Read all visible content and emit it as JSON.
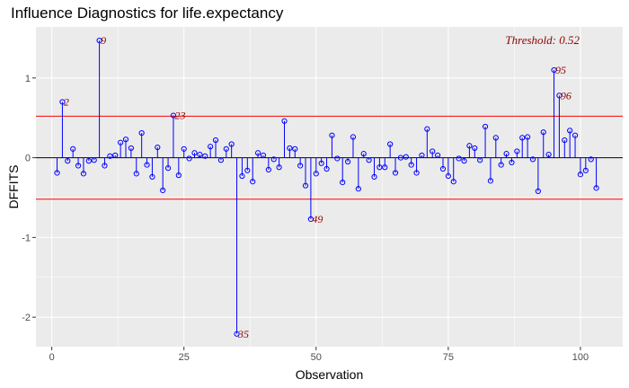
{
  "chart_data": {
    "type": "scatter",
    "title": "Influence Diagnostics for life.expectancy",
    "xlabel": "Observation",
    "ylabel": "DFFITS",
    "xlim": [
      -3,
      108
    ],
    "ylim": [
      -2.37,
      1.64
    ],
    "x_ticks": [
      0,
      25,
      50,
      75,
      100
    ],
    "y_ticks": [
      1,
      0,
      -1,
      -2
    ],
    "grid": true,
    "threshold": 0.52,
    "threshold_text": "Threshold: 0.52",
    "colors": {
      "points": "#0000ff",
      "threshold_lines": "#ff0000",
      "labels": "#8b0000",
      "panel": "#ebebeb",
      "grid": "#ffffff"
    },
    "series": [
      {
        "x": [
          1,
          2,
          3,
          4,
          5,
          6,
          7,
          8,
          9,
          10,
          11,
          12,
          13,
          14,
          15,
          16,
          17,
          18,
          19,
          20,
          21,
          22,
          23,
          24,
          25,
          26,
          27,
          28,
          29,
          30,
          31,
          32,
          33,
          34,
          35,
          36,
          37,
          38,
          39,
          40,
          41,
          42,
          43,
          44,
          45,
          46,
          47,
          48,
          49,
          50,
          51,
          52,
          53,
          54,
          55,
          56,
          57,
          58,
          59,
          60,
          61,
          62,
          63,
          64,
          65,
          66,
          67,
          68,
          69,
          70,
          71,
          72,
          73,
          74,
          75,
          76,
          77,
          78,
          79,
          80,
          81,
          82,
          83,
          84,
          85,
          86,
          87,
          88,
          89,
          90,
          91,
          92,
          93,
          94,
          95,
          96,
          97,
          98,
          99,
          100,
          101,
          102,
          103
        ],
        "y": [
          -0.19,
          0.7,
          -0.04,
          0.11,
          -0.1,
          -0.2,
          -0.04,
          -0.03,
          1.47,
          -0.1,
          0.02,
          0.03,
          0.19,
          0.23,
          0.12,
          -0.2,
          0.31,
          -0.09,
          -0.24,
          0.13,
          -0.41,
          -0.13,
          0.53,
          -0.22,
          0.11,
          -0.01,
          0.06,
          0.04,
          0.02,
          0.14,
          0.22,
          -0.03,
          0.11,
          0.17,
          -2.21,
          -0.23,
          -0.16,
          -0.3,
          0.06,
          0.03,
          -0.15,
          -0.02,
          -0.12,
          0.46,
          0.12,
          0.11,
          -0.1,
          -0.35,
          -0.77,
          -0.2,
          -0.07,
          -0.14,
          0.28,
          -0.01,
          -0.31,
          -0.05,
          0.26,
          -0.39,
          0.05,
          -0.03,
          -0.24,
          -0.12,
          -0.12,
          0.17,
          -0.19,
          0.0,
          0.01,
          -0.09,
          -0.19,
          0.03,
          0.36,
          0.08,
          0.03,
          -0.14,
          -0.23,
          -0.3,
          -0.01,
          -0.04,
          0.15,
          0.12,
          -0.03,
          0.39,
          -0.29,
          0.25,
          -0.09,
          0.05,
          -0.06,
          0.08,
          0.25,
          0.26,
          -0.02,
          -0.42,
          0.32,
          0.04,
          1.1,
          0.78,
          0.22,
          0.34,
          0.28,
          -0.21,
          -0.16,
          -0.02,
          -0.38
        ]
      }
    ],
    "annotations": [
      {
        "x": 2,
        "y": 0.7,
        "text": "2"
      },
      {
        "x": 9,
        "y": 1.47,
        "text": "9"
      },
      {
        "x": 23,
        "y": 0.53,
        "text": "23"
      },
      {
        "x": 35,
        "y": -2.21,
        "text": "35"
      },
      {
        "x": 49,
        "y": -0.77,
        "text": "49"
      },
      {
        "x": 95,
        "y": 1.1,
        "text": "95"
      },
      {
        "x": 96,
        "y": 0.78,
        "text": "96"
      }
    ]
  }
}
